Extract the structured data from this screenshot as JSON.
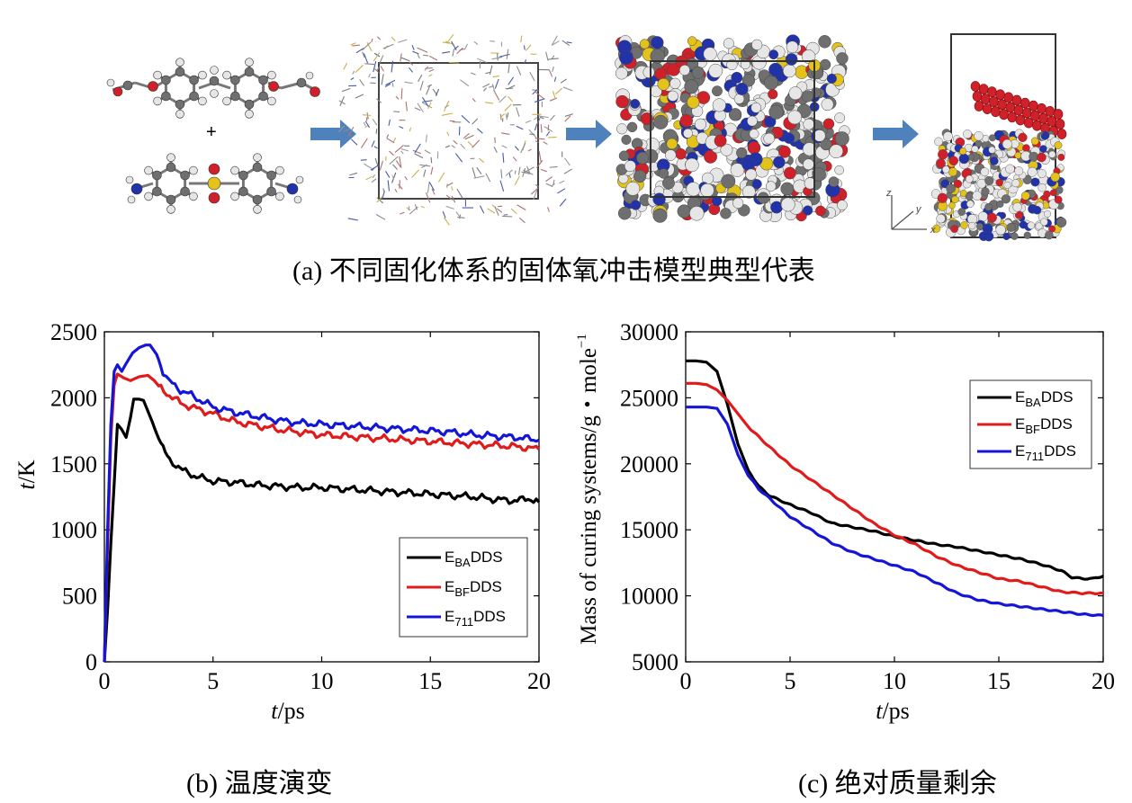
{
  "panel_a": {
    "caption": "(a) 不同固化体系的固体氧冲击模型典型代表",
    "plus_sign": "+",
    "axis_labels": {
      "z": "z",
      "y": "y",
      "x": "x"
    },
    "colors": {
      "arrow": "#4f81bd",
      "carbon": "#6f6f6f",
      "hydrogen": "#e6e6e6",
      "oxygen": "#d0202a",
      "nitrogen": "#2233aa",
      "sulfur": "#e2c21b"
    }
  },
  "panel_b": {
    "caption": "(b) 温度演变"
  },
  "panel_c": {
    "caption": "(c) 绝对质量剩余"
  },
  "chart_data": [
    {
      "type": "line",
      "panel": "b",
      "title": "",
      "xlabel_italic": "t",
      "xlabel_rest": "/ps",
      "ylabel_italic": "t",
      "ylabel_rest": "/K",
      "xlim": [
        0,
        20
      ],
      "ylim": [
        0,
        2500
      ],
      "xticks": [
        0,
        5,
        10,
        15,
        20
      ],
      "yticks": [
        0,
        500,
        1000,
        1500,
        2000,
        2500
      ],
      "grid": false,
      "legend_position": "lower-right",
      "series": [
        {
          "base": "E",
          "sub": "BA",
          "suffix": "DDS",
          "color": "#000000",
          "x": [
            0,
            0.15,
            0.3,
            0.45,
            0.6,
            0.8,
            1.0,
            1.2,
            1.35,
            1.6,
            1.8,
            2.0,
            2.2,
            2.4,
            2.6,
            2.8,
            3.0,
            3.3,
            3.6,
            4.0,
            4.5,
            5.0,
            6.0,
            7.0,
            8.0,
            9.0,
            10.0,
            11.0,
            12.0,
            13.0,
            14.0,
            15.0,
            16.0,
            17.0,
            18.0,
            19.0,
            19.5,
            20.0
          ],
          "y": [
            0,
            400,
            900,
            1350,
            1800,
            1760,
            1700,
            1850,
            1990,
            1990,
            1980,
            1900,
            1820,
            1730,
            1650,
            1580,
            1530,
            1490,
            1450,
            1420,
            1390,
            1370,
            1360,
            1340,
            1330,
            1320,
            1320,
            1310,
            1300,
            1290,
            1280,
            1270,
            1260,
            1250,
            1230,
            1220,
            1240,
            1210
          ]
        },
        {
          "base": "E",
          "sub": "BF",
          "suffix": "DDS",
          "color": "#e01b1b",
          "x": [
            0,
            0.15,
            0.3,
            0.45,
            0.6,
            0.9,
            1.2,
            1.6,
            2.0,
            2.3,
            2.6,
            3.0,
            3.5,
            4.0,
            5.0,
            6.0,
            7.0,
            8.0,
            9.0,
            10.0,
            11.0,
            12.0,
            13.0,
            14.0,
            15.0,
            16.0,
            17.0,
            18.0,
            19.0,
            20.0
          ],
          "y": [
            0,
            900,
            1700,
            2100,
            2180,
            2150,
            2130,
            2160,
            2170,
            2130,
            2070,
            2020,
            1960,
            1930,
            1880,
            1820,
            1790,
            1760,
            1740,
            1720,
            1710,
            1700,
            1690,
            1680,
            1670,
            1660,
            1650,
            1640,
            1630,
            1610
          ]
        },
        {
          "base": "E",
          "sub": "711",
          "suffix": "DDS",
          "color": "#1515d8",
          "x": [
            0,
            0.15,
            0.3,
            0.45,
            0.6,
            0.8,
            1.0,
            1.3,
            1.6,
            1.9,
            2.1,
            2.4,
            2.7,
            3.0,
            3.5,
            4.0,
            5.0,
            6.0,
            7.0,
            8.0,
            9.0,
            10.0,
            11.0,
            12.0,
            13.0,
            14.0,
            15.0,
            16.0,
            17.0,
            18.0,
            19.0,
            20.0
          ],
          "y": [
            0,
            1000,
            1800,
            2200,
            2250,
            2200,
            2260,
            2340,
            2380,
            2400,
            2400,
            2330,
            2200,
            2120,
            2060,
            2020,
            1930,
            1890,
            1860,
            1830,
            1810,
            1800,
            1790,
            1780,
            1770,
            1760,
            1750,
            1740,
            1720,
            1710,
            1700,
            1680
          ]
        }
      ]
    },
    {
      "type": "line",
      "panel": "c",
      "title": "",
      "xlabel_italic": "t",
      "xlabel_rest": "/ps",
      "ylabel": "Mass of curing systems/g・mole",
      "ylabel_sup": "−1",
      "xlim": [
        0,
        20
      ],
      "ylim": [
        5000,
        30000
      ],
      "xticks": [
        0,
        5,
        10,
        15,
        20
      ],
      "yticks": [
        5000,
        10000,
        15000,
        20000,
        25000,
        30000
      ],
      "grid": false,
      "legend_position": "top-right",
      "series": [
        {
          "base": "E",
          "sub": "BA",
          "suffix": "DDS",
          "color": "#000000",
          "x": [
            0,
            0.5,
            1.0,
            1.5,
            2.0,
            2.5,
            3.0,
            3.5,
            4.0,
            5.0,
            6.0,
            7.0,
            8.0,
            9.0,
            10.0,
            11.0,
            12.0,
            13.0,
            14.0,
            15.0,
            16.0,
            17.0,
            18.0,
            18.5,
            19.0,
            19.5,
            20.0
          ],
          "y": [
            27800,
            27800,
            27700,
            27000,
            24500,
            21500,
            19500,
            18300,
            17600,
            16900,
            16300,
            15500,
            15200,
            14900,
            14500,
            14200,
            13900,
            13700,
            13400,
            13100,
            12800,
            12400,
            11900,
            11400,
            11300,
            11300,
            11500
          ]
        },
        {
          "base": "E",
          "sub": "BF",
          "suffix": "DDS",
          "color": "#e01b1b",
          "x": [
            0,
            0.5,
            1.0,
            1.5,
            2.0,
            3.0,
            4.0,
            5.0,
            6.0,
            7.0,
            8.0,
            9.0,
            10.0,
            11.0,
            12.0,
            13.0,
            14.0,
            15.0,
            16.0,
            17.0,
            18.0,
            19.0,
            20.0
          ],
          "y": [
            26100,
            26100,
            26000,
            25600,
            24800,
            22800,
            21300,
            19900,
            18800,
            17700,
            16600,
            15500,
            14600,
            13900,
            13000,
            12300,
            11800,
            11300,
            11100,
            10700,
            10300,
            10200,
            10200
          ]
        },
        {
          "base": "E",
          "sub": "711",
          "suffix": "DDS",
          "color": "#1515d8",
          "x": [
            0,
            0.5,
            1.0,
            1.5,
            2.0,
            2.5,
            3.0,
            3.5,
            4.0,
            5.0,
            6.0,
            7.0,
            8.0,
            9.0,
            10.0,
            11.0,
            12.0,
            13.0,
            14.0,
            15.0,
            16.0,
            17.0,
            18.0,
            19.0,
            20.0
          ],
          "y": [
            24300,
            24300,
            24300,
            24200,
            23000,
            20700,
            19100,
            18100,
            17400,
            16000,
            15000,
            14000,
            13300,
            12800,
            12300,
            11800,
            11000,
            10200,
            9700,
            9400,
            9200,
            9000,
            8800,
            8600,
            8500
          ]
        }
      ]
    }
  ]
}
